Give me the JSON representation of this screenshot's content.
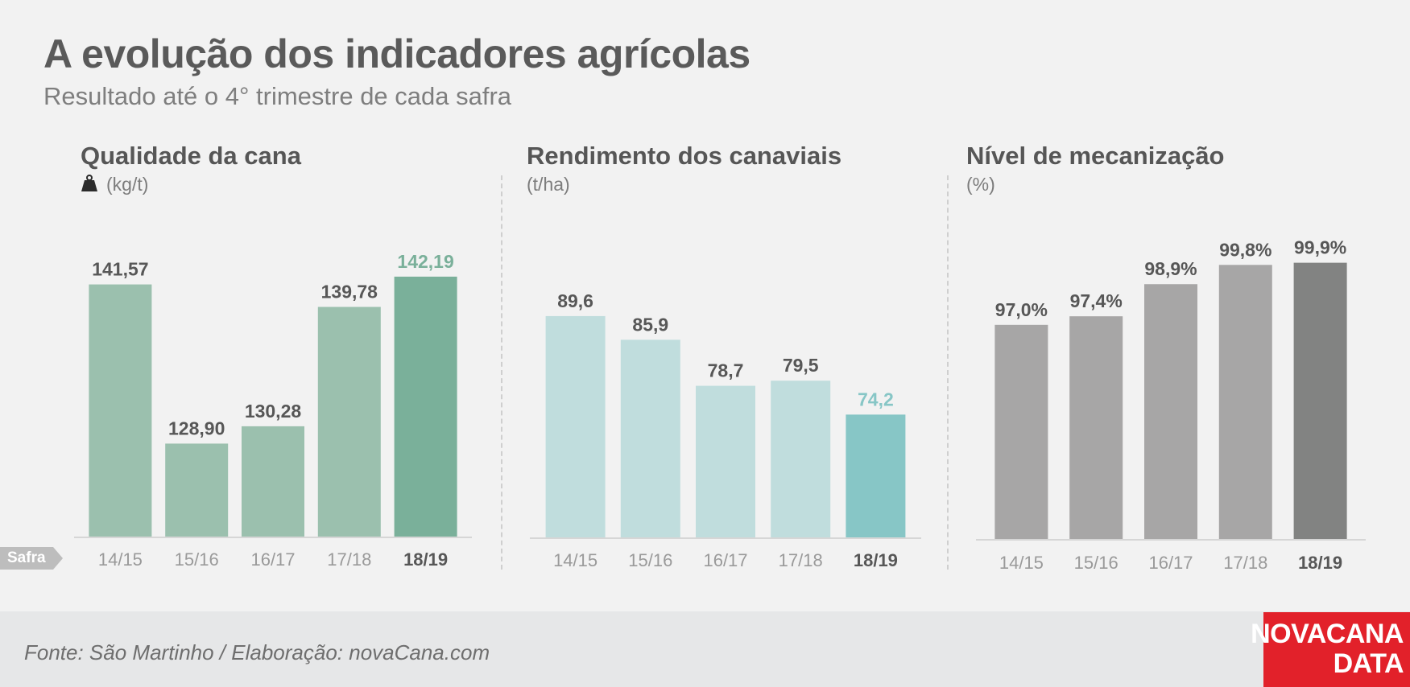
{
  "header": {
    "title": "A evolução dos indicadores agrícolas",
    "subtitle": "Resultado até o 4° trimestre de cada safra"
  },
  "axis_tag": "Safra",
  "source": "Fonte: São Martinho / Elaboração: novaCana.com",
  "logo": {
    "line1": "NOVACANA",
    "line2": "DATA"
  },
  "icons": {
    "weight": "weight-icon"
  },
  "chart_data": [
    {
      "type": "bar",
      "title": "Qualidade da cana",
      "unit": "(kg/t)",
      "categories": [
        "14/15",
        "15/16",
        "16/17",
        "17/18",
        "18/19"
      ],
      "values": [
        141.57,
        128.9,
        130.28,
        139.78,
        142.19
      ],
      "labels": [
        "141,57",
        "128,90",
        "130,28",
        "139,78",
        "142,19"
      ],
      "colors": {
        "bar": "#9bc0ae",
        "highlight": "#7ab09a",
        "highlight_label": "#7ab09a"
      },
      "ylim": [
        121.5,
        145
      ],
      "highlight_index": 4
    },
    {
      "type": "bar",
      "title": "Rendimento dos canaviais",
      "unit": "(t/ha)",
      "categories": [
        "14/15",
        "15/16",
        "16/17",
        "17/18",
        "18/19"
      ],
      "values": [
        89.6,
        85.9,
        78.7,
        79.5,
        74.2
      ],
      "labels": [
        "89,6",
        "85,9",
        "78,7",
        "79,5",
        "74,2"
      ],
      "colors": {
        "bar": "#c0dddd",
        "highlight": "#87c6c6",
        "highlight_label": "#87c6c6"
      },
      "ylim": [
        55,
        95
      ],
      "highlight_index": 4
    },
    {
      "type": "bar",
      "title": "Nível de mecanização",
      "unit": "(%)",
      "categories": [
        "14/15",
        "15/16",
        "16/17",
        "17/18",
        "18/19"
      ],
      "values": [
        97.0,
        97.4,
        98.9,
        99.8,
        99.9
      ],
      "labels": [
        "97,0%",
        "97,4%",
        "98,9%",
        "99,8%",
        "99,9%"
      ],
      "colors": {
        "bar": "#a7a6a6",
        "highlight": "#828382",
        "highlight_label": "#575757"
      },
      "ylim": [
        87.0,
        100.9
      ],
      "highlight_index": 4
    }
  ]
}
